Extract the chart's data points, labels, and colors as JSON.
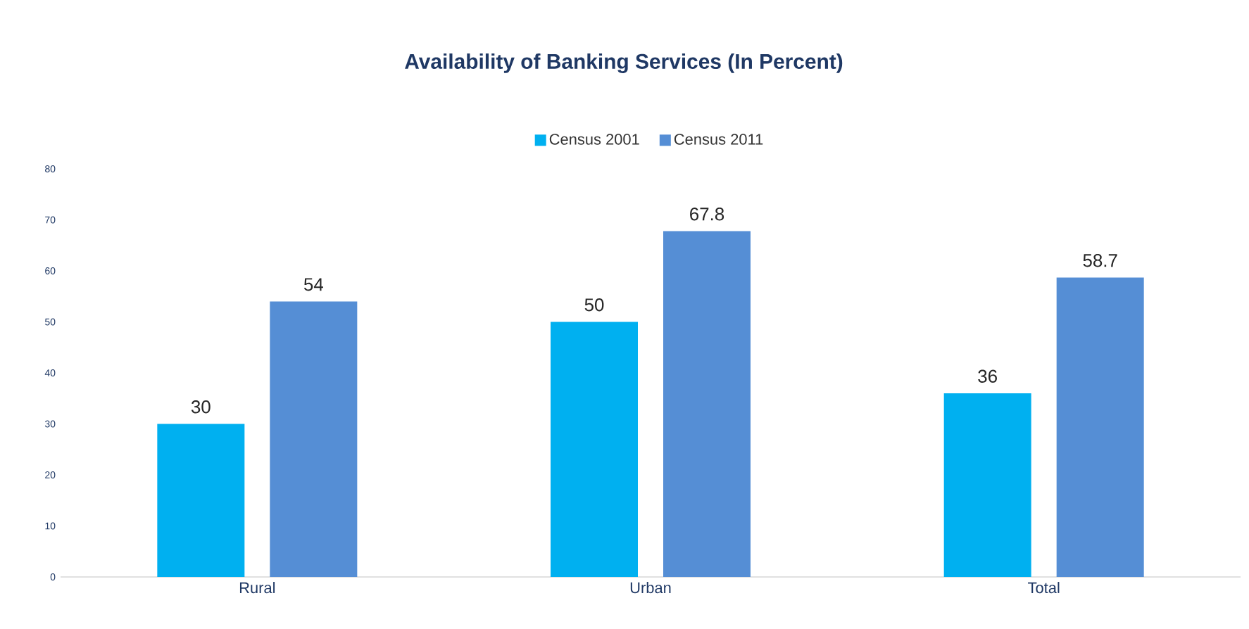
{
  "chart_data": {
    "type": "bar",
    "title": "Availability of Banking Services (In Percent)",
    "categories": [
      "Rural",
      "Urban",
      "Total"
    ],
    "series": [
      {
        "name": "Census 2001",
        "color": "#00b0f0",
        "values": [
          30,
          50,
          36
        ]
      },
      {
        "name": "Census 2011",
        "color": "#558ed5",
        "values": [
          54,
          67.8,
          58.7
        ]
      }
    ],
    "ylim": [
      0,
      80
    ],
    "yticks": [
      0,
      10,
      20,
      30,
      40,
      50,
      60,
      70,
      80
    ],
    "grid": false,
    "legend": "top",
    "data_labels": true
  }
}
